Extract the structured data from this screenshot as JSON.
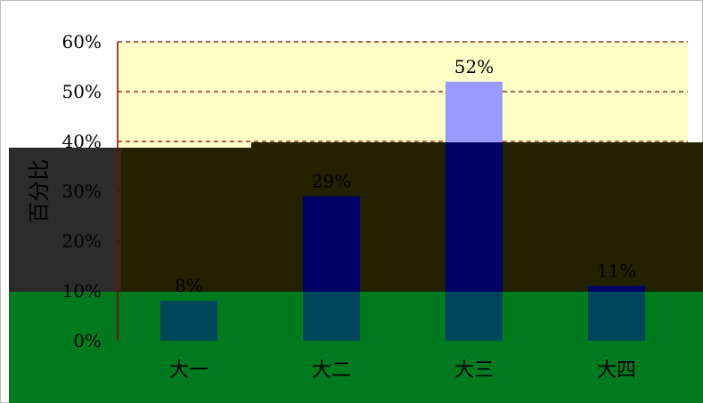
{
  "chart_data": {
    "type": "bar",
    "categories": [
      "大一",
      "大二",
      "大三",
      "大四"
    ],
    "values": [
      8,
      29,
      52,
      11
    ],
    "value_labels": [
      "8%",
      "29%",
      "52%",
      "11%"
    ],
    "ylabel": "百分比",
    "ylim": [
      0,
      60
    ],
    "yticks": [
      0,
      10,
      20,
      30,
      40,
      50,
      60
    ],
    "ytick_labels": [
      "0%",
      "10%",
      "20%",
      "30%",
      "40%",
      "50%",
      "60%"
    ],
    "grid": "horizontal dashed",
    "colors": {
      "plot_background": "#ffffc8",
      "bar": "#9999ff",
      "gridline": "#8b0000",
      "overlay_dark": "#1a1a1a",
      "overlay_green": "#007a1f",
      "overlay_bar_dark": "#000066",
      "overlay_bar_teal": "#00465a"
    }
  }
}
